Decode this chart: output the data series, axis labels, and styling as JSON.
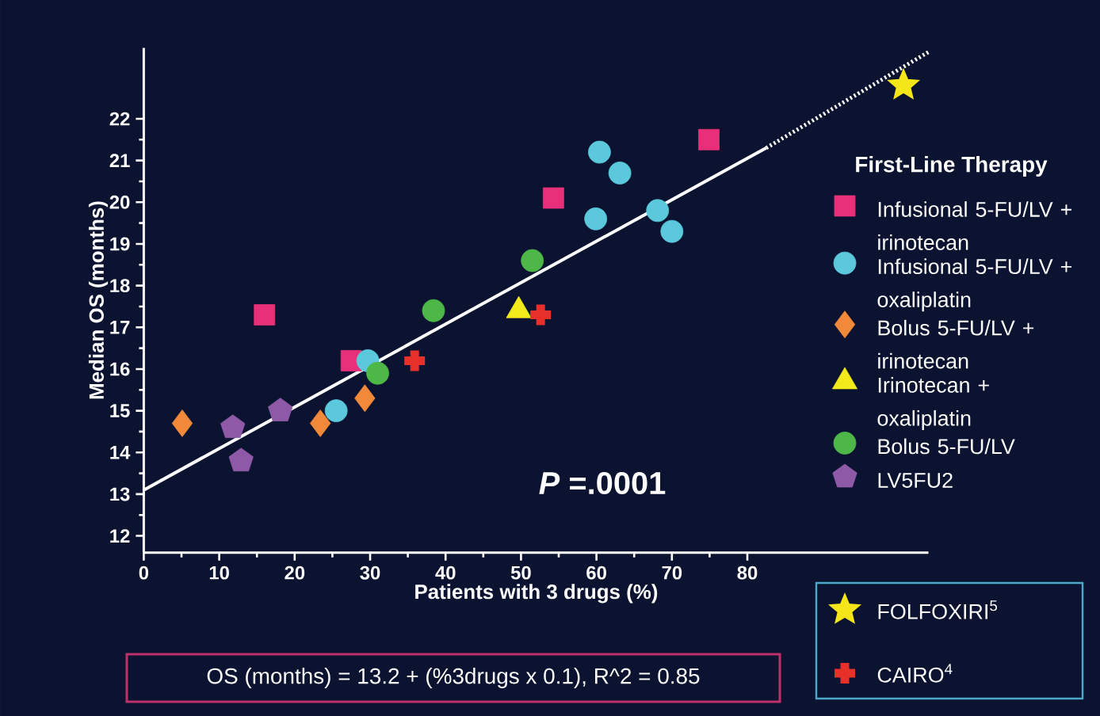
{
  "chart_data": {
    "type": "scatter",
    "xlabel": "Patients with 3 drugs (%)",
    "ylabel": "Median OS (months)",
    "legend_title": "First-Line Therapy",
    "legend": "right",
    "xlim": [
      0,
      104
    ],
    "ylim": [
      11.6,
      23.7
    ],
    "xticks": [
      0,
      10,
      20,
      30,
      40,
      50,
      60,
      70,
      80
    ],
    "yticks": [
      12,
      13,
      14,
      15,
      16,
      17,
      18,
      19,
      20,
      21,
      22
    ],
    "annotations": [
      "*P* =.0001",
      "OS (months) = 13.2 + (%3drugs x 0.1), R^2 = 0.85"
    ],
    "series": [
      {
        "name": "Infusional 5-FU/LV + irinotecan",
        "color": "#e8307a",
        "marker": "square",
        "x": [
          16.0,
          27.5,
          54.3,
          74.9
        ],
        "values": [
          17.3,
          16.2,
          20.1,
          21.5
        ]
      },
      {
        "name": "Infusional 5-FU/LV + oxaliplatin",
        "color": "#5bc8dc",
        "marker": "circle",
        "x": [
          60.4,
          63.1,
          59.9,
          68.1,
          70.0,
          25.5,
          29.7
        ],
        "values": [
          21.2,
          20.7,
          19.6,
          19.8,
          19.3,
          15.0,
          16.2
        ]
      },
      {
        "name": "Bolus 5-FU/LV + irinotecan",
        "color": "#f08a3a",
        "marker": "diamond",
        "x": [
          5.1,
          23.4,
          29.3
        ],
        "values": [
          14.7,
          14.7,
          15.3
        ]
      },
      {
        "name": "Irinotecan + oxaliplatin",
        "color": "#f2ea1a",
        "marker": "triangle",
        "x": [
          49.7
        ],
        "values": [
          17.4
        ]
      },
      {
        "name": "Bolus 5-FU/LV",
        "color": "#4db848",
        "marker": "circle",
        "x": [
          31.0,
          38.4,
          51.5
        ],
        "values": [
          15.9,
          17.4,
          18.6
        ]
      },
      {
        "name": "LV5FU2",
        "color": "#8e5aa8",
        "x": [
          11.8,
          12.9,
          18.1
        ],
        "values": [
          14.6,
          13.8,
          15.0
        ]
      },
      {
        "name": "FOLFOXIRI$^{5}$",
        "color": "#f5e61a",
        "marker": "star",
        "x": [
          100.7
        ],
        "values": [
          22.8
        ]
      },
      {
        "name": "CAIRO$^{4}$",
        "color": "#e8302a",
        "marker": "cross",
        "x": [
          35.9,
          52.6
        ],
        "values": [
          16.2,
          17.3
        ]
      },
      {
        "type": "line",
        "color": "#ffffff",
        "line_style": "solid",
        "marker": "none",
        "x": [
          0,
          82.5
        ],
        "values": [
          13.1,
          21.3
        ]
      },
      {
        "type": "line",
        "color": "#ffffff",
        "line_style": "dotted",
        "marker": "none",
        "x": [
          82.5,
          104
        ],
        "values": [
          21.3,
          23.6
        ]
      }
    ]
  }
}
